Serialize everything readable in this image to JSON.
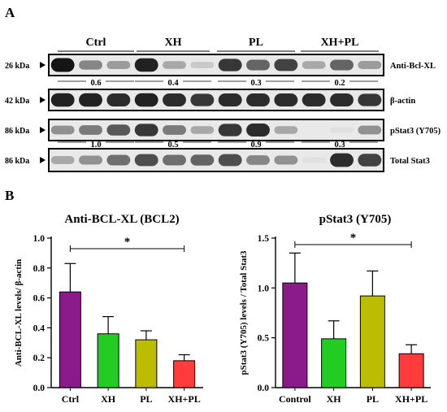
{
  "panels": {
    "a_label": "A",
    "b_label": "B"
  },
  "blot": {
    "groups": [
      "Ctrl",
      "XH",
      "PL",
      "XH+PL"
    ],
    "strips": [
      {
        "kda": "26 kDa",
        "label": "Anti-Bcl-XL",
        "ratios": [
          "0.6",
          "0.4",
          "0.3",
          "0.2"
        ]
      },
      {
        "kda": "42 kDa",
        "label": "β-actin",
        "ratios": []
      },
      {
        "kda": "86 kDa",
        "label": "pStat3 (Y705)",
        "ratios": [
          "1.0",
          "0.5",
          "0.9",
          "0.3"
        ]
      },
      {
        "kda": "86 kDa",
        "label": "Total Stat3",
        "ratios": []
      }
    ],
    "band_intensity": [
      [
        0.95,
        0.45,
        0.35,
        0.9,
        0.3,
        0.15,
        0.8,
        0.6,
        0.75,
        0.3,
        0.6,
        0.35
      ],
      [
        0.9,
        0.9,
        0.85,
        0.9,
        0.85,
        0.8,
        0.85,
        0.85,
        0.85,
        0.85,
        0.85,
        0.8
      ],
      [
        0.4,
        0.5,
        0.65,
        0.8,
        0.5,
        0.3,
        0.8,
        0.85,
        0.3,
        0.0,
        0.05,
        0.4
      ],
      [
        0.3,
        0.4,
        0.55,
        0.7,
        0.55,
        0.6,
        0.7,
        0.45,
        0.4,
        0.05,
        0.85,
        0.75
      ]
    ]
  },
  "chart_data": [
    {
      "type": "bar",
      "title": "Anti-BCL-XL (BCL2)",
      "ylabel": "Anti-BCL-XL levels/ β-actin",
      "xlabel": "",
      "categories": [
        "Ctrl",
        "XH",
        "PL",
        "XH+PL"
      ],
      "values": [
        0.64,
        0.36,
        0.32,
        0.18
      ],
      "errors": [
        0.19,
        0.115,
        0.06,
        0.04
      ],
      "colors": [
        "#8b1a8b",
        "#22cc22",
        "#bdbd00",
        "#ff3b3b"
      ],
      "ylim": [
        0,
        1.0
      ],
      "yticks": [
        "0.0",
        "0.2",
        "0.4",
        "0.6",
        "0.8",
        "1.0"
      ],
      "significance": {
        "from": "Ctrl",
        "to": "XH+PL",
        "label": "*"
      }
    },
    {
      "type": "bar",
      "title": "pStat3 (Y705)",
      "ylabel": "pStat3 (Y705) levels / Total Stat3",
      "xlabel": "",
      "categories": [
        "Control",
        "XH",
        "PL",
        "XH+PL"
      ],
      "values": [
        1.05,
        0.49,
        0.92,
        0.34
      ],
      "errors": [
        0.3,
        0.18,
        0.25,
        0.09
      ],
      "colors": [
        "#8b1a8b",
        "#22cc22",
        "#bdbd00",
        "#ff3b3b"
      ],
      "ylim": [
        0,
        1.5
      ],
      "yticks": [
        "0.0",
        "0.5",
        "1.0",
        "1.5"
      ],
      "significance": {
        "from": "Control",
        "to": "XH+PL",
        "label": "*"
      }
    }
  ]
}
